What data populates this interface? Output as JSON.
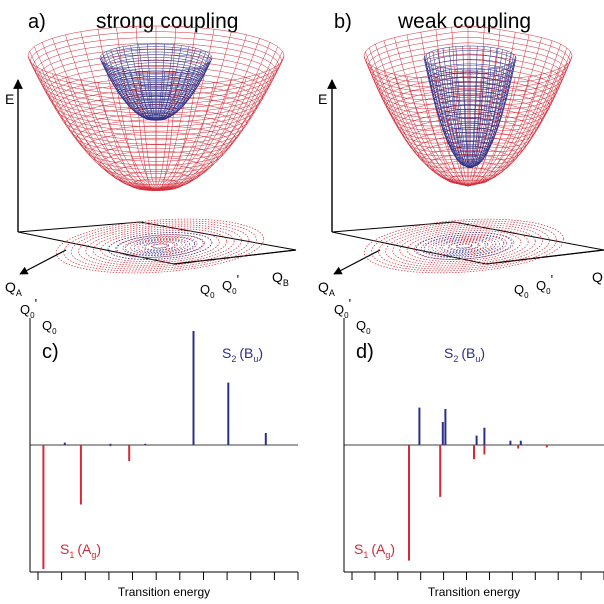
{
  "colors": {
    "red": "#d42a38",
    "blue": "#2c2f8a",
    "axis": "#000000"
  },
  "panel_a": {
    "letter": "a)",
    "title": "strong coupling",
    "axis_e": "E",
    "axis_qa": "Q",
    "axis_qa_sub": "A",
    "axis_qb": "Q",
    "axis_qb_sub": "B",
    "q0_prime": "Q",
    "q0_prime_sub": "0",
    "q0_prime_mark": "'",
    "q0": "Q",
    "q0_sub": "0"
  },
  "panel_b": {
    "letter": "b)",
    "title": "weak coupling",
    "axis_e": "E",
    "axis_qa": "Q",
    "axis_qa_sub": "A",
    "axis_qb": "Q",
    "q0_prime": "Q",
    "q0_prime_sub": "0",
    "q0_prime_mark": "'",
    "q0": "Q",
    "q0_sub": "0"
  },
  "panel_c": {
    "letter": "c)",
    "s2_label": "S",
    "s2_sub": "2",
    "s2_sym": "(B",
    "s2_sym_sub": "u",
    "s2_close": ")",
    "s1_label": "S",
    "s1_sub": "1",
    "s1_sym": "(A",
    "s1_sym_sub": "g",
    "s1_close": ")",
    "xlabel": "Transition energy"
  },
  "panel_d": {
    "letter": "d)",
    "s2_label": "S",
    "s2_sub": "2",
    "s2_sym": "(B",
    "s2_sym_sub": "u",
    "s2_close": ")",
    "s1_label": "S",
    "s1_sub": "1",
    "s1_sym": "(A",
    "s1_sym_sub": "g",
    "s1_close": ")",
    "xlabel": "Transition energy"
  },
  "chart_data": [
    {
      "type": "bar",
      "panel": "c",
      "series": [
        {
          "name": "S2 (Bu)",
          "color": "#2c2f8a",
          "x": [
            0.13,
            0.3,
            0.43,
            0.61,
            0.74,
            0.88
          ],
          "values": [
            0.02,
            0.01,
            0.01,
            0.95,
            0.52,
            0.1
          ]
        },
        {
          "name": "S1 (Ag)",
          "color": "#d42a38",
          "x": [
            0.05,
            0.19,
            0.3,
            0.37
          ],
          "values": [
            -1.0,
            -0.48,
            -0.01,
            -0.13
          ]
        }
      ]
    },
    {
      "type": "bar",
      "panel": "d",
      "series": [
        {
          "name": "S2 (Bu)",
          "color": "#2c2f8a",
          "x": [
            0.29,
            0.38,
            0.39,
            0.51,
            0.54,
            0.64,
            0.68
          ],
          "values": [
            0.52,
            0.32,
            0.5,
            0.13,
            0.24,
            0.06,
            0.06
          ]
        },
        {
          "name": "S1 (Ag)",
          "color": "#d42a38",
          "x": [
            0.25,
            0.37,
            0.5,
            0.54,
            0.67,
            0.78
          ],
          "values": [
            -0.98,
            -0.44,
            -0.12,
            -0.08,
            -0.03,
            -0.02
          ]
        }
      ]
    }
  ]
}
